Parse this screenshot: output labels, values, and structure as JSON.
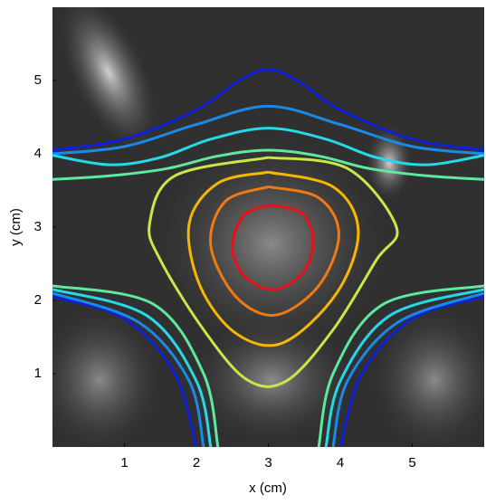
{
  "chart_data": {
    "type": "contour",
    "xlabel": "x (cm)",
    "ylabel": "y (cm)",
    "xlim": [
      0,
      6
    ],
    "ylim": [
      0,
      6
    ],
    "xticks": [
      1,
      2,
      3,
      4,
      5
    ],
    "yticks": [
      1,
      2,
      3,
      4,
      5
    ],
    "series": [
      {
        "color": "#e8101a",
        "x": [
          3.0,
          3.45,
          3.62,
          3.5,
          3.1,
          2.7,
          2.5,
          2.65,
          3.0
        ],
        "y": [
          3.3,
          3.2,
          2.85,
          2.4,
          2.15,
          2.3,
          2.7,
          3.15,
          3.3
        ]
      },
      {
        "color": "#f07a12",
        "x": [
          3.0,
          3.7,
          3.98,
          3.7,
          3.1,
          2.55,
          2.2,
          2.4,
          3.0
        ],
        "y": [
          3.55,
          3.4,
          2.9,
          2.2,
          1.8,
          2.05,
          2.75,
          3.35,
          3.55
        ]
      },
      {
        "color": "#f5b800",
        "x": [
          3.0,
          3.9,
          4.25,
          3.95,
          3.2,
          2.55,
          2.05,
          1.9,
          2.3,
          3.0
        ],
        "y": [
          3.75,
          3.55,
          2.95,
          2.1,
          1.42,
          1.55,
          2.2,
          3.05,
          3.6,
          3.75
        ]
      },
      {
        "color": "#c8e84a",
        "x": [
          3.0,
          4.1,
          4.78,
          4.5,
          3.9,
          3.25,
          2.7,
          2.1,
          1.5,
          1.35,
          1.7,
          3.0
        ],
        "y": [
          3.95,
          3.8,
          3.0,
          2.55,
          1.6,
          0.9,
          0.92,
          1.6,
          2.55,
          3.05,
          3.7,
          3.95
        ]
      },
      {
        "color": "#1020d8",
        "x": [
          0,
          1,
          2,
          2.6,
          3,
          3.4,
          4,
          5,
          6
        ],
        "y": [
          4.05,
          4.2,
          4.6,
          5.0,
          5.15,
          5.0,
          4.6,
          4.2,
          4.05
        ]
      },
      {
        "color": "#1a8ae8",
        "x": [
          0,
          1,
          2,
          3,
          4,
          5,
          6
        ],
        "y": [
          4.0,
          4.1,
          4.4,
          4.65,
          4.4,
          4.1,
          4.0
        ]
      },
      {
        "color": "#28d8e8",
        "x": [
          0,
          0.8,
          1.5,
          2.2,
          3,
          3.8,
          4.5,
          5.2,
          6
        ],
        "y": [
          3.98,
          3.85,
          3.95,
          4.2,
          4.35,
          4.2,
          3.95,
          3.85,
          3.98
        ]
      },
      {
        "color": "#5ee8a0",
        "x": [
          0,
          0.8,
          1.6,
          2.3,
          3,
          3.7,
          4.4,
          5.2,
          6
        ],
        "y": [
          3.65,
          3.7,
          3.8,
          3.97,
          4.05,
          3.97,
          3.8,
          3.7,
          3.65
        ]
      },
      {
        "color": "#1020d8",
        "x": [
          0,
          1,
          1.7,
          2.0
        ],
        "y": [
          2.05,
          1.75,
          1.0,
          0
        ]
      },
      {
        "color": "#1a8ae8",
        "x": [
          0,
          1.2,
          1.9,
          2.1
        ],
        "y": [
          2.1,
          1.7,
          0.9,
          0
        ]
      },
      {
        "color": "#28d8e8",
        "x": [
          0,
          1.3,
          2.0,
          2.2
        ],
        "y": [
          2.15,
          1.8,
          0.9,
          0
        ]
      },
      {
        "color": "#5ee8a0",
        "x": [
          0,
          1.4,
          2.1,
          2.3
        ],
        "y": [
          2.2,
          1.95,
          1.0,
          0
        ]
      },
      {
        "color": "#1020d8",
        "x": [
          6,
          5,
          4.3,
          4.0
        ],
        "y": [
          2.05,
          1.75,
          1.0,
          0
        ]
      },
      {
        "color": "#1a8ae8",
        "x": [
          6,
          4.8,
          4.1,
          3.9
        ],
        "y": [
          2.1,
          1.7,
          0.9,
          0
        ]
      },
      {
        "color": "#28d8e8",
        "x": [
          6,
          4.7,
          4.0,
          3.8
        ],
        "y": [
          2.15,
          1.8,
          0.9,
          0
        ]
      },
      {
        "color": "#5ee8a0",
        "x": [
          6,
          4.6,
          3.9,
          3.7
        ],
        "y": [
          2.2,
          1.95,
          1.0,
          0
        ]
      }
    ]
  }
}
